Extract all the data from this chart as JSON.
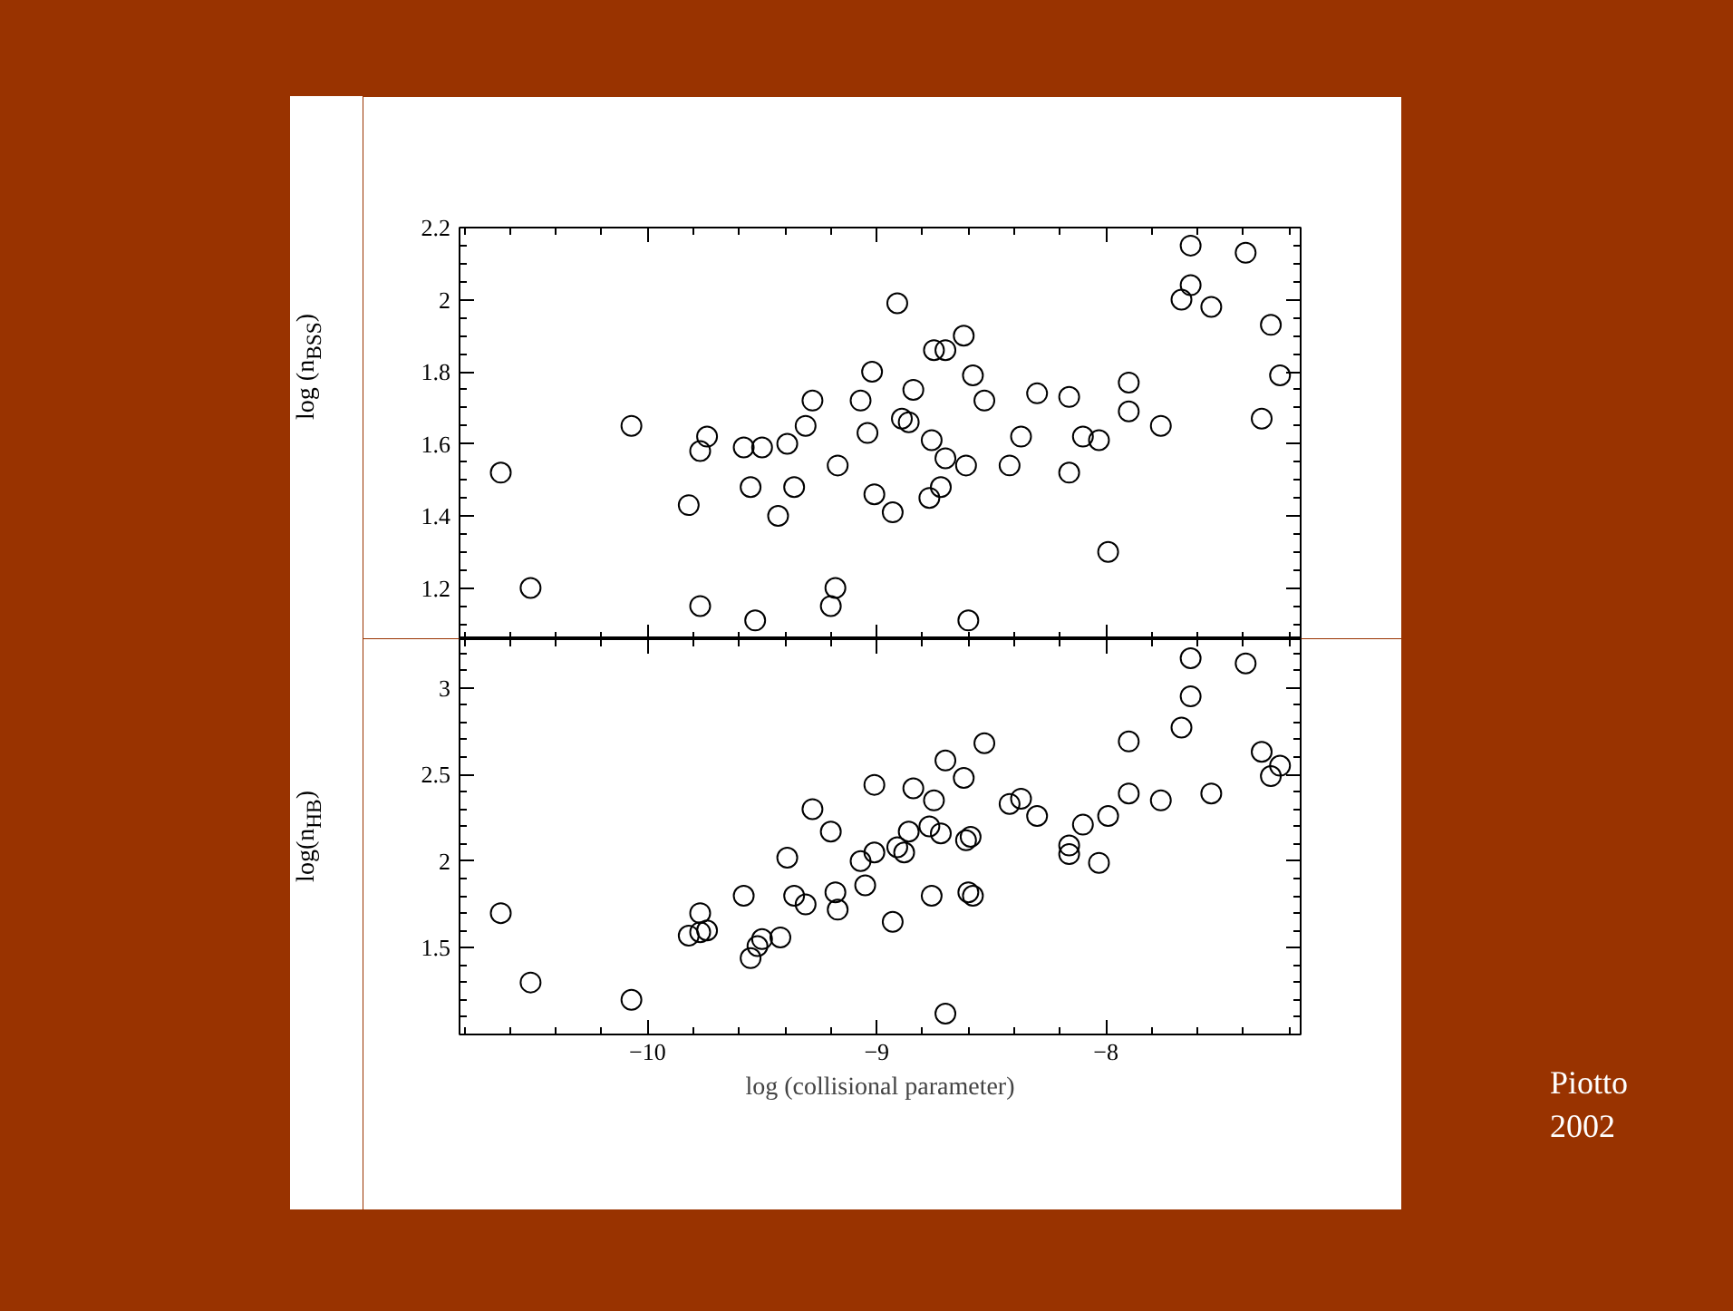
{
  "chart_data": [
    {
      "type": "scatter",
      "ylabel": "log (n$_{BSS}$)",
      "marker": "circle",
      "grid": false,
      "tick_labels": "y",
      "xlim": [
        -10.82,
        -7.15
      ],
      "xticks": [
        -10,
        -9,
        -8
      ],
      "ylim": [
        1.058,
        2.2
      ],
      "yticks": [
        1.2,
        1.4,
        1.6,
        1.8,
        2,
        2.2
      ],
      "series": [
        {
          "color": "#000000",
          "x": [
            -10.64,
            -10.51,
            -10.07,
            -9.82,
            -9.77,
            -9.74,
            -9.77,
            -9.58,
            -9.55,
            -9.5,
            -9.53,
            -9.43,
            -9.39,
            -9.36,
            -9.31,
            -9.28,
            -9.17,
            -9.18,
            -9.2,
            -9.07,
            -9.04,
            -9.02,
            -9.01,
            -8.93,
            -8.91,
            -8.89,
            -8.86,
            -8.84,
            -8.77,
            -8.76,
            -8.75,
            -8.72,
            -8.7,
            -8.7,
            -8.62,
            -8.61,
            -8.6,
            -8.58,
            -8.53,
            -8.42,
            -8.37,
            -8.3,
            -8.16,
            -8.16,
            -8.1,
            -8.03,
            -7.99,
            -7.9,
            -7.9,
            -7.76,
            -7.67,
            -7.63,
            -7.63,
            -7.54,
            -7.39,
            -7.32,
            -7.28,
            -7.24
          ],
          "values": [
            1.52,
            1.2,
            1.65,
            1.43,
            1.58,
            1.62,
            1.15,
            1.59,
            1.48,
            1.59,
            1.11,
            1.4,
            1.6,
            1.48,
            1.65,
            1.72,
            1.54,
            1.2,
            1.15,
            1.72,
            1.63,
            1.8,
            1.46,
            1.41,
            1.99,
            1.67,
            1.66,
            1.75,
            1.45,
            1.61,
            1.86,
            1.48,
            1.56,
            1.86,
            1.9,
            1.54,
            1.11,
            1.79,
            1.72,
            1.54,
            1.62,
            1.74,
            1.73,
            1.52,
            1.62,
            1.61,
            1.3,
            1.77,
            1.69,
            1.65,
            2.0,
            2.04,
            2.15,
            1.98,
            2.13,
            1.67,
            1.93,
            1.79
          ]
        }
      ]
    },
    {
      "type": "scatter",
      "xlabel": "log (collisional parameter)",
      "ylabel": "log(n$_{HB}$)",
      "marker": "circle",
      "grid": false,
      "xlim": [
        -10.82,
        -7.15
      ],
      "xticks": [
        -10,
        -9,
        -8
      ],
      "ylim": [
        1.0,
        3.28
      ],
      "yticks": [
        1.5,
        2,
        2.5,
        3
      ],
      "annotations": [
        "Piotto 2002"
      ],
      "series": [
        {
          "color": "#000000",
          "x": [
            -10.64,
            -10.51,
            -10.07,
            -9.82,
            -9.77,
            -9.77,
            -9.74,
            -9.58,
            -9.55,
            -9.52,
            -9.5,
            -9.42,
            -9.39,
            -9.36,
            -9.31,
            -9.28,
            -9.2,
            -9.18,
            -9.17,
            -9.07,
            -9.05,
            -9.01,
            -9.01,
            -8.93,
            -8.91,
            -8.88,
            -8.86,
            -8.84,
            -8.77,
            -8.76,
            -8.75,
            -8.72,
            -8.7,
            -8.7,
            -8.62,
            -8.61,
            -8.6,
            -8.58,
            -8.59,
            -8.53,
            -8.42,
            -8.37,
            -8.3,
            -8.16,
            -8.16,
            -8.1,
            -8.03,
            -7.99,
            -7.9,
            -7.9,
            -7.76,
            -7.67,
            -7.63,
            -7.63,
            -7.54,
            -7.39,
            -7.32,
            -7.28,
            -7.24
          ],
          "values": [
            1.7,
            1.3,
            1.2,
            1.57,
            1.59,
            1.7,
            1.6,
            1.8,
            1.44,
            1.51,
            1.55,
            1.56,
            2.02,
            1.8,
            1.75,
            2.3,
            2.17,
            1.82,
            1.72,
            2.0,
            1.86,
            2.44,
            2.05,
            1.65,
            2.08,
            2.05,
            2.17,
            2.42,
            2.2,
            1.8,
            2.35,
            2.16,
            2.58,
            1.12,
            2.48,
            2.12,
            1.82,
            1.8,
            2.14,
            2.68,
            2.33,
            2.36,
            2.26,
            2.09,
            2.04,
            2.21,
            1.99,
            2.26,
            2.69,
            2.39,
            2.35,
            2.77,
            2.95,
            3.17,
            2.39,
            3.14,
            2.63,
            2.49,
            2.55
          ]
        }
      ]
    }
  ]
}
